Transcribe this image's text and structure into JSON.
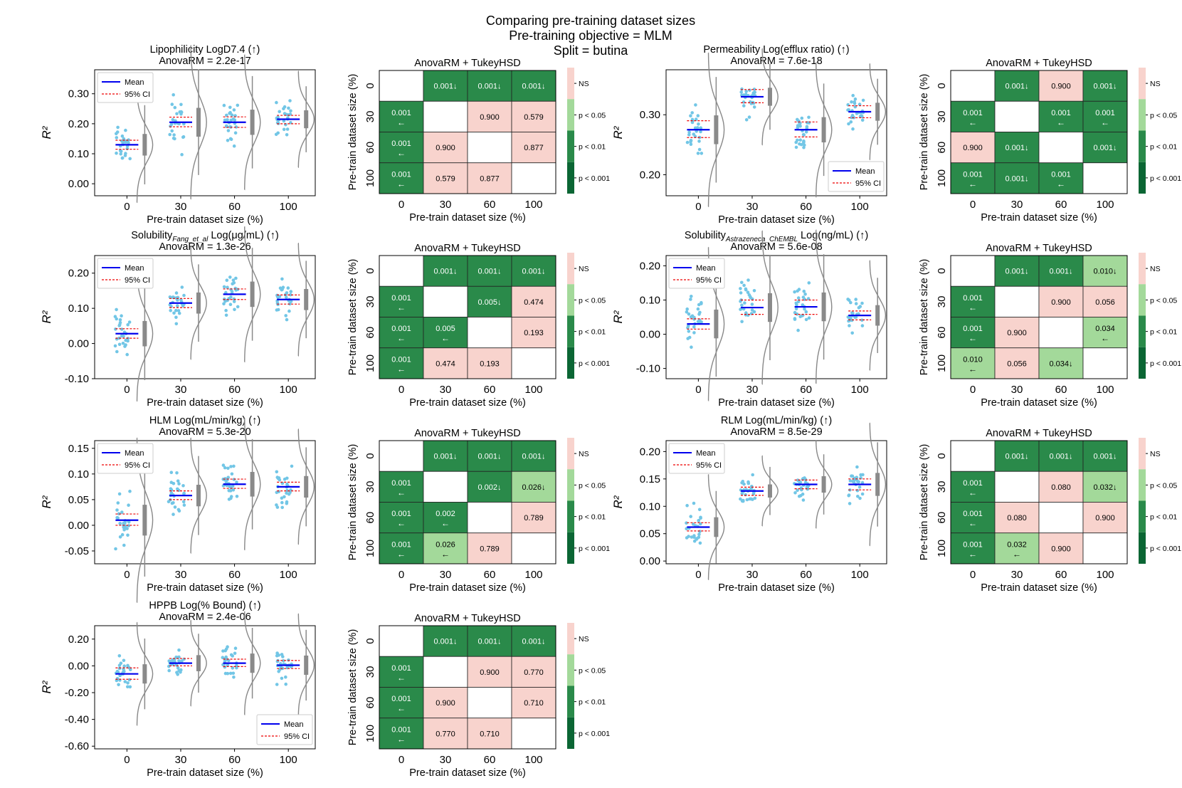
{
  "figure": {
    "title_lines": [
      "Comparing pre-training dataset sizes",
      "Pre-training objective =  MLM",
      "Split = butina"
    ]
  },
  "shared": {
    "xlabel": "Pre-train dataset size (%)",
    "ylabel": "R²",
    "heatmap_ylabel": "Pre-train dataset size (%)",
    "heatmap_title": "AnovaRM + TukeyHSD",
    "legend": [
      "Mean",
      "95% CI"
    ],
    "colorbar_labels": [
      "NS",
      "p < 0.05",
      "p < 0.01",
      "p < 0.001"
    ],
    "colors": {
      "ns": "#f8d3cd",
      "p05": "#a3d99a",
      "p01": "#2a8a4a",
      "p001": "#0b6634",
      "points": "#72c6e6",
      "mean": "#0000ee",
      "ci": "#ee0000"
    }
  },
  "chart_data": [
    {
      "id": "lipo",
      "type": "raincloud",
      "title": "Lipophilicity LogD7.4 (↑)",
      "stat": "AnovaRM = 2.2e-17",
      "categories": [
        "0",
        "30",
        "60",
        "100"
      ],
      "ylim": [
        -0.04,
        0.38
      ],
      "yticks": [
        0.0,
        0.1,
        0.2,
        0.3
      ],
      "ytick_labels": [
        "0.00",
        "0.10",
        "0.20",
        "0.30"
      ],
      "legend_position": "top-left",
      "means": [
        0.13,
        0.205,
        0.205,
        0.215
      ],
      "ci": [
        [
          0.115,
          0.145
        ],
        [
          0.19,
          0.222
        ],
        [
          0.188,
          0.223
        ],
        [
          0.2,
          0.228
        ]
      ],
      "spread": [
        0.06,
        0.08,
        0.07,
        0.05
      ]
    },
    {
      "id": "lipo_hm",
      "type": "heatmap",
      "title": "AnovaRM + TukeyHSD",
      "labels": [
        "0",
        "30",
        "60",
        "100"
      ],
      "cells": [
        [
          "",
          "0.001↓",
          "0.001↓",
          "0.001↓"
        ],
        [
          "0.001\n←",
          "",
          "0.900",
          "0.579"
        ],
        [
          "0.001\n←",
          "0.900",
          "",
          "0.877"
        ],
        [
          "0.001\n←",
          "0.579",
          "0.877",
          ""
        ]
      ],
      "levels": [
        [
          "diag",
          "p01",
          "p01",
          "p01"
        ],
        [
          "p01",
          "diag",
          "ns",
          "ns"
        ],
        [
          "p01",
          "ns",
          "diag",
          "ns"
        ],
        [
          "p01",
          "ns",
          "ns",
          "diag"
        ]
      ]
    },
    {
      "id": "perm",
      "type": "raincloud",
      "title": "Permeability Log(efflux ratio) (↑)",
      "stat": "AnovaRM = 7.6e-18",
      "categories": [
        "0",
        "30",
        "60",
        "100"
      ],
      "ylim": [
        0.165,
        0.375
      ],
      "yticks": [
        0.2,
        0.3
      ],
      "ytick_labels": [
        "0.20",
        "0.30"
      ],
      "legend_position": "bottom-right",
      "means": [
        0.275,
        0.33,
        0.275,
        0.305
      ],
      "ci": [
        [
          0.262,
          0.29
        ],
        [
          0.32,
          0.342
        ],
        [
          0.263,
          0.288
        ],
        [
          0.295,
          0.315
        ]
      ],
      "spread": [
        0.04,
        0.025,
        0.035,
        0.025
      ]
    },
    {
      "id": "perm_hm",
      "type": "heatmap",
      "title": "AnovaRM + TukeyHSD",
      "labels": [
        "0",
        "30",
        "60",
        "100"
      ],
      "cells": [
        [
          "",
          "0.001↓",
          "0.900",
          "0.001↓"
        ],
        [
          "0.001\n←",
          "",
          "0.001\n←",
          "0.001\n←"
        ],
        [
          "0.900",
          "0.001↓",
          "",
          "0.001↓"
        ],
        [
          "0.001\n←",
          "0.001↓",
          "0.001\n←",
          ""
        ]
      ],
      "levels": [
        [
          "diag",
          "p01",
          "ns",
          "p01"
        ],
        [
          "p01",
          "diag",
          "p01",
          "p01"
        ],
        [
          "ns",
          "p01",
          "diag",
          "p01"
        ],
        [
          "p01",
          "p01",
          "p01",
          "diag"
        ]
      ]
    },
    {
      "id": "solf",
      "type": "raincloud",
      "title": "Solubility_Fang_et_al Log(μg/mL) (↑)",
      "title_main": "Solubility",
      "title_sub": "Fang_et_al",
      "title_rest": " Log(μg/mL) (↑)",
      "stat": "AnovaRM = 1.3e-26",
      "categories": [
        "0",
        "30",
        "60",
        "100"
      ],
      "ylim": [
        -0.1,
        0.25
      ],
      "yticks": [
        -0.1,
        0.0,
        0.1,
        0.2
      ],
      "ytick_labels": [
        "-0.10",
        "0.00",
        "0.10",
        "0.20"
      ],
      "legend_position": "top-left",
      "means": [
        0.028,
        0.115,
        0.14,
        0.125
      ],
      "ci": [
        [
          0.015,
          0.042
        ],
        [
          0.102,
          0.128
        ],
        [
          0.125,
          0.155
        ],
        [
          0.112,
          0.138
        ]
      ],
      "spread": [
        0.06,
        0.05,
        0.06,
        0.05
      ]
    },
    {
      "id": "solf_hm",
      "type": "heatmap",
      "title": "AnovaRM + TukeyHSD",
      "labels": [
        "0",
        "30",
        "60",
        "100"
      ],
      "cells": [
        [
          "",
          "0.001↓",
          "0.001↓",
          "0.001↓"
        ],
        [
          "0.001\n←",
          "",
          "0.005↓",
          "0.474"
        ],
        [
          "0.001\n←",
          "0.005\n←",
          "",
          "0.193"
        ],
        [
          "0.001\n←",
          "0.474",
          "0.193",
          ""
        ]
      ],
      "levels": [
        [
          "diag",
          "p01",
          "p01",
          "p01"
        ],
        [
          "p01",
          "diag",
          "p01",
          "ns"
        ],
        [
          "p01",
          "p01",
          "diag",
          "ns"
        ],
        [
          "p01",
          "ns",
          "ns",
          "diag"
        ]
      ]
    },
    {
      "id": "sola",
      "type": "raincloud",
      "title": "Solubility_Astrazeneca_ChEMBL Log(ng/mL) (↑)",
      "title_main": "Solubility",
      "title_sub": "Astrazeneca_ChEMBL",
      "title_rest": " Log(ng/mL) (↑)",
      "stat": "AnovaRM = 5.6e-08",
      "categories": [
        "0",
        "30",
        "60",
        "100"
      ],
      "ylim": [
        -0.13,
        0.23
      ],
      "yticks": [
        -0.1,
        0.0,
        0.1,
        0.2
      ],
      "ytick_labels": [
        "-0.10",
        "0.00",
        "0.10",
        "0.20"
      ],
      "legend_position": "top-left",
      "means": [
        0.03,
        0.078,
        0.08,
        0.055
      ],
      "ci": [
        [
          0.015,
          0.045
        ],
        [
          0.058,
          0.1
        ],
        [
          0.058,
          0.1
        ],
        [
          0.042,
          0.068
        ]
      ],
      "spread": [
        0.07,
        0.07,
        0.07,
        0.05
      ]
    },
    {
      "id": "sola_hm",
      "type": "heatmap",
      "title": "AnovaRM + TukeyHSD",
      "labels": [
        "0",
        "30",
        "60",
        "100"
      ],
      "cells": [
        [
          "",
          "0.001↓",
          "0.001↓",
          "0.010↓"
        ],
        [
          "0.001\n←",
          "",
          "0.900",
          "0.056"
        ],
        [
          "0.001\n←",
          "0.900",
          "",
          "0.034\n←"
        ],
        [
          "0.010\n←",
          "0.056",
          "0.034↓",
          ""
        ]
      ],
      "levels": [
        [
          "diag",
          "p01",
          "p01",
          "p05"
        ],
        [
          "p01",
          "diag",
          "ns",
          "ns"
        ],
        [
          "p01",
          "ns",
          "diag",
          "p05"
        ],
        [
          "p05",
          "ns",
          "p05",
          "diag"
        ]
      ]
    },
    {
      "id": "hlm",
      "type": "raincloud",
      "title": "HLM Log(mL/min/kg) (↑)",
      "stat": "AnovaRM = 5.3e-20",
      "categories": [
        "0",
        "30",
        "60",
        "100"
      ],
      "ylim": [
        -0.075,
        0.165
      ],
      "yticks": [
        -0.05,
        0.0,
        0.05,
        0.1,
        0.15
      ],
      "ytick_labels": [
        "-0.05",
        "0.00",
        "0.05",
        "0.10",
        "0.15"
      ],
      "legend_position": "top-left",
      "means": [
        0.01,
        0.058,
        0.08,
        0.075
      ],
      "ci": [
        [
          0.0,
          0.022
        ],
        [
          0.05,
          0.067
        ],
        [
          0.072,
          0.09
        ],
        [
          0.067,
          0.084
        ]
      ],
      "spread": [
        0.05,
        0.035,
        0.04,
        0.035
      ]
    },
    {
      "id": "hlm_hm",
      "type": "heatmap",
      "title": "AnovaRM + TukeyHSD",
      "labels": [
        "0",
        "30",
        "60",
        "100"
      ],
      "cells": [
        [
          "",
          "0.001↓",
          "0.001↓",
          "0.001↓"
        ],
        [
          "0.001\n←",
          "",
          "0.002↓",
          "0.026↓"
        ],
        [
          "0.001\n←",
          "0.002\n←",
          "",
          "0.789"
        ],
        [
          "0.001\n←",
          "0.026\n←",
          "0.789",
          ""
        ]
      ],
      "levels": [
        [
          "diag",
          "p01",
          "p01",
          "p01"
        ],
        [
          "p01",
          "diag",
          "p01",
          "p05"
        ],
        [
          "p01",
          "p01",
          "diag",
          "ns"
        ],
        [
          "p01",
          "p05",
          "ns",
          "diag"
        ]
      ]
    },
    {
      "id": "rlm",
      "type": "raincloud",
      "title": "RLM Log(mL/min/kg) (↑)",
      "stat": "AnovaRM = 8.5e-29",
      "categories": [
        "0",
        "30",
        "60",
        "100"
      ],
      "ylim": [
        -0.005,
        0.22
      ],
      "yticks": [
        0.0,
        0.05,
        0.1,
        0.15,
        0.2
      ],
      "ytick_labels": [
        "0.00",
        "0.05",
        "0.10",
        "0.15",
        "0.20"
      ],
      "legend_position": "top-left",
      "means": [
        0.062,
        0.128,
        0.14,
        0.14
      ],
      "ci": [
        [
          0.055,
          0.07
        ],
        [
          0.12,
          0.135
        ],
        [
          0.132,
          0.148
        ],
        [
          0.13,
          0.15
        ]
      ],
      "spread": [
        0.03,
        0.02,
        0.025,
        0.035
      ]
    },
    {
      "id": "rlm_hm",
      "type": "heatmap",
      "title": "AnovaRM + TukeyHSD",
      "labels": [
        "0",
        "30",
        "60",
        "100"
      ],
      "cells": [
        [
          "",
          "0.001↓",
          "0.001↓",
          "0.001↓"
        ],
        [
          "0.001\n←",
          "",
          "0.080",
          "0.032↓"
        ],
        [
          "0.001\n←",
          "0.080",
          "",
          "0.900"
        ],
        [
          "0.001\n←",
          "0.032\n←",
          "0.900",
          ""
        ]
      ],
      "levels": [
        [
          "diag",
          "p01",
          "p01",
          "p01"
        ],
        [
          "p01",
          "diag",
          "ns",
          "p05"
        ],
        [
          "p01",
          "ns",
          "diag",
          "ns"
        ],
        [
          "p01",
          "p05",
          "ns",
          "diag"
        ]
      ]
    },
    {
      "id": "hppb",
      "type": "raincloud",
      "title": "HPPB Log(% Bound) (↑)",
      "stat": "AnovaRM = 2.4e-06",
      "categories": [
        "0",
        "30",
        "60",
        "100"
      ],
      "ylim": [
        -0.62,
        0.3
      ],
      "yticks": [
        -0.6,
        -0.4,
        -0.2,
        0.0,
        0.2
      ],
      "ytick_labels": [
        "-0.60",
        "-0.40",
        "-0.20",
        "0.00",
        "0.20"
      ],
      "legend_position": "bottom-right",
      "means": [
        -0.06,
        0.02,
        0.02,
        0.005
      ],
      "ci": [
        [
          -0.1,
          -0.015
        ],
        [
          0.0,
          0.055
        ],
        [
          -0.005,
          0.05
        ],
        [
          -0.02,
          0.04
        ]
      ],
      "spread": [
        0.12,
        0.1,
        0.12,
        0.12
      ]
    },
    {
      "id": "hppb_hm",
      "type": "heatmap",
      "title": "AnovaRM + TukeyHSD",
      "labels": [
        "0",
        "30",
        "60",
        "100"
      ],
      "cells": [
        [
          "",
          "0.001↓",
          "0.001↓",
          "0.001↓"
        ],
        [
          "0.001\n←",
          "",
          "0.900",
          "0.770"
        ],
        [
          "0.001\n←",
          "0.900",
          "",
          "0.710"
        ],
        [
          "0.001\n←",
          "0.770",
          "0.710",
          ""
        ]
      ],
      "levels": [
        [
          "diag",
          "p01",
          "p01",
          "p01"
        ],
        [
          "p01",
          "diag",
          "ns",
          "ns"
        ],
        [
          "p01",
          "ns",
          "diag",
          "ns"
        ],
        [
          "p01",
          "ns",
          "ns",
          "diag"
        ]
      ]
    }
  ]
}
